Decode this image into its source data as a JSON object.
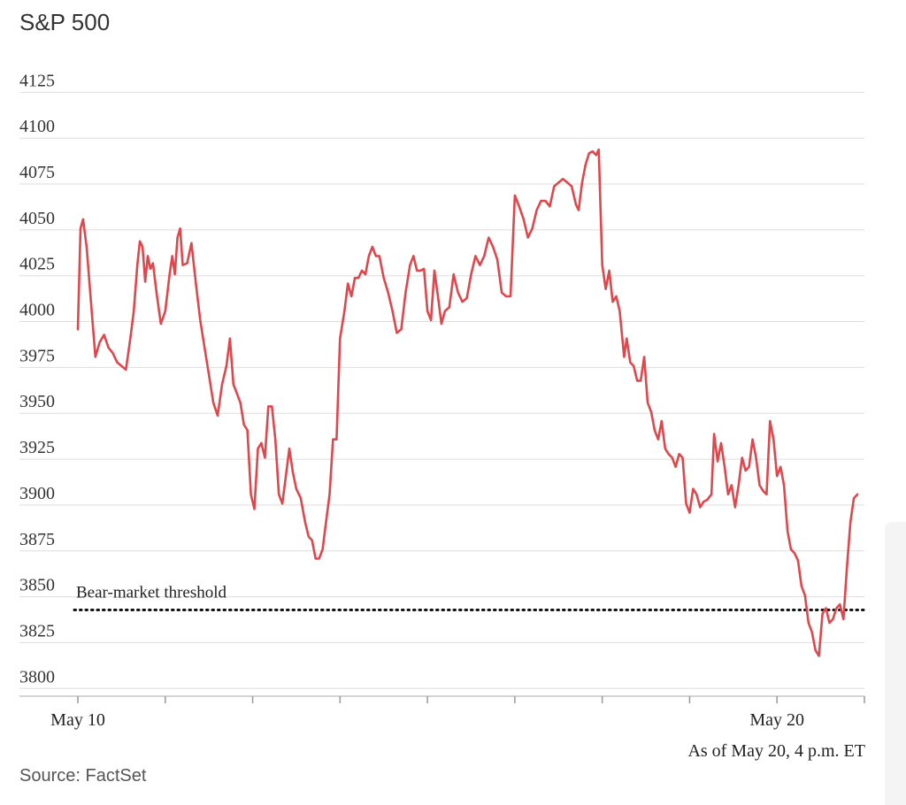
{
  "header": {
    "title": "S&P 500"
  },
  "footer": {
    "source": "Source: FactSet",
    "as_of": "As of May 20, 4 p.m. ET"
  },
  "colors": {
    "line": "#e0474c",
    "grid": "#dddddd",
    "threshold": "#111111"
  },
  "chart_data": {
    "type": "line",
    "title": "S&P 500",
    "xlabel": "",
    "ylabel": "",
    "ylim": [
      3790,
      4130
    ],
    "yticks": [
      4125,
      4100,
      4075,
      4050,
      4025,
      4000,
      3975,
      3950,
      3925,
      3900,
      3875,
      3850,
      3825,
      3800
    ],
    "xlim": [
      0,
      9
    ],
    "x_ticks_positions": [
      0,
      1,
      2,
      3,
      4,
      5,
      6,
      7,
      8,
      9
    ],
    "x_tick_labels": [
      {
        "x": 0,
        "label": "May 10"
      },
      {
        "x": 8,
        "label": "May 20"
      }
    ],
    "grid": true,
    "annotation": {
      "label": "Bear-market threshold",
      "y": 3837,
      "style": "dotted"
    },
    "series": [
      {
        "name": "",
        "points": [
          [
            0.0,
            3990
          ],
          [
            0.03,
            4045
          ],
          [
            0.06,
            4050
          ],
          [
            0.1,
            4035
          ],
          [
            0.15,
            4005
          ],
          [
            0.2,
            3975
          ],
          [
            0.25,
            3983
          ],
          [
            0.3,
            3987
          ],
          [
            0.35,
            3980
          ],
          [
            0.4,
            3977
          ],
          [
            0.45,
            3972
          ],
          [
            0.5,
            3970
          ],
          [
            0.55,
            3968
          ],
          [
            0.6,
            3985
          ],
          [
            0.64,
            4000
          ],
          [
            0.68,
            4025
          ],
          [
            0.71,
            4038
          ],
          [
            0.74,
            4035
          ],
          [
            0.77,
            4016
          ],
          [
            0.8,
            4030
          ],
          [
            0.83,
            4023
          ],
          [
            0.86,
            4026
          ],
          [
            0.9,
            4010
          ],
          [
            0.95,
            3993
          ],
          [
            1.0,
            4000
          ],
          [
            1.05,
            4020
          ],
          [
            1.08,
            4030
          ],
          [
            1.11,
            4020
          ],
          [
            1.14,
            4040
          ],
          [
            1.17,
            4045
          ],
          [
            1.2,
            4025
          ],
          [
            1.25,
            4026
          ],
          [
            1.3,
            4037
          ],
          [
            1.35,
            4015
          ],
          [
            1.4,
            3995
          ],
          [
            1.45,
            3980
          ],
          [
            1.5,
            3965
          ],
          [
            1.55,
            3950
          ],
          [
            1.6,
            3943
          ],
          [
            1.65,
            3960
          ],
          [
            1.7,
            3970
          ],
          [
            1.74,
            3985
          ],
          [
            1.78,
            3960
          ],
          [
            1.82,
            3955
          ],
          [
            1.86,
            3950
          ],
          [
            1.9,
            3938
          ],
          [
            1.94,
            3935
          ],
          [
            1.98,
            3900
          ],
          [
            2.02,
            3892
          ],
          [
            2.06,
            3925
          ],
          [
            2.1,
            3928
          ],
          [
            2.14,
            3920
          ],
          [
            2.18,
            3948
          ],
          [
            2.22,
            3948
          ],
          [
            2.26,
            3930
          ],
          [
            2.3,
            3900
          ],
          [
            2.34,
            3895
          ],
          [
            2.38,
            3910
          ],
          [
            2.42,
            3925
          ],
          [
            2.46,
            3912
          ],
          [
            2.5,
            3903
          ],
          [
            2.55,
            3898
          ],
          [
            2.6,
            3885
          ],
          [
            2.64,
            3877
          ],
          [
            2.68,
            3875
          ],
          [
            2.72,
            3865
          ],
          [
            2.76,
            3865
          ],
          [
            2.8,
            3870
          ],
          [
            2.84,
            3885
          ],
          [
            2.88,
            3900
          ],
          [
            2.92,
            3930
          ],
          [
            2.96,
            3930
          ],
          [
            3.0,
            3985
          ],
          [
            3.05,
            4000
          ],
          [
            3.09,
            4015
          ],
          [
            3.13,
            4008
          ],
          [
            3.17,
            4018
          ],
          [
            3.21,
            4018
          ],
          [
            3.25,
            4022
          ],
          [
            3.29,
            4020
          ],
          [
            3.33,
            4030
          ],
          [
            3.37,
            4035
          ],
          [
            3.41,
            4030
          ],
          [
            3.45,
            4030
          ],
          [
            3.5,
            4018
          ],
          [
            3.55,
            4010
          ],
          [
            3.6,
            4000
          ],
          [
            3.65,
            3988
          ],
          [
            3.7,
            3990
          ],
          [
            3.75,
            4010
          ],
          [
            3.8,
            4025
          ],
          [
            3.84,
            4030
          ],
          [
            3.88,
            4022
          ],
          [
            3.92,
            4022
          ],
          [
            3.96,
            4023
          ],
          [
            4.0,
            4000
          ],
          [
            4.04,
            3995
          ],
          [
            4.08,
            4022
          ],
          [
            4.12,
            4008
          ],
          [
            4.16,
            3993
          ],
          [
            4.2,
            4000
          ],
          [
            4.25,
            4002
          ],
          [
            4.3,
            4020
          ],
          [
            4.35,
            4010
          ],
          [
            4.4,
            4005
          ],
          [
            4.45,
            4007
          ],
          [
            4.5,
            4020
          ],
          [
            4.55,
            4030
          ],
          [
            4.6,
            4025
          ],
          [
            4.65,
            4030
          ],
          [
            4.7,
            4040
          ],
          [
            4.75,
            4035
          ],
          [
            4.8,
            4028
          ],
          [
            4.85,
            4010
          ],
          [
            4.9,
            4008
          ],
          [
            4.95,
            4008
          ],
          [
            5.0,
            4063
          ],
          [
            5.05,
            4057
          ],
          [
            5.1,
            4050
          ],
          [
            5.15,
            4040
          ],
          [
            5.2,
            4045
          ],
          [
            5.25,
            4055
          ],
          [
            5.3,
            4060
          ],
          [
            5.35,
            4060
          ],
          [
            5.4,
            4057
          ],
          [
            5.45,
            4068
          ],
          [
            5.5,
            4070
          ],
          [
            5.55,
            4072
          ],
          [
            5.6,
            4070
          ],
          [
            5.65,
            4068
          ],
          [
            5.7,
            4058
          ],
          [
            5.73,
            4055
          ],
          [
            5.77,
            4070
          ],
          [
            5.81,
            4080
          ],
          [
            5.85,
            4086
          ],
          [
            5.89,
            4087
          ],
          [
            5.93,
            4085
          ],
          [
            5.96,
            4088
          ],
          [
            6.0,
            4025
          ],
          [
            6.04,
            4012
          ],
          [
            6.08,
            4022
          ],
          [
            6.12,
            4005
          ],
          [
            6.16,
            4008
          ],
          [
            6.2,
            4000
          ],
          [
            6.25,
            3975
          ],
          [
            6.28,
            3985
          ],
          [
            6.32,
            3972
          ],
          [
            6.36,
            3970
          ],
          [
            6.4,
            3962
          ],
          [
            6.44,
            3962
          ],
          [
            6.48,
            3975
          ],
          [
            6.52,
            3950
          ],
          [
            6.56,
            3945
          ],
          [
            6.6,
            3935
          ],
          [
            6.64,
            3930
          ],
          [
            6.68,
            3940
          ],
          [
            6.72,
            3925
          ],
          [
            6.76,
            3922
          ],
          [
            6.8,
            3920
          ],
          [
            6.84,
            3915
          ],
          [
            6.88,
            3922
          ],
          [
            6.92,
            3920
          ],
          [
            6.96,
            3895
          ],
          [
            7.0,
            3890
          ],
          [
            7.04,
            3903
          ],
          [
            7.08,
            3900
          ],
          [
            7.12,
            3893
          ],
          [
            7.16,
            3896
          ],
          [
            7.2,
            3897
          ],
          [
            7.25,
            3900
          ],
          [
            7.28,
            3933
          ],
          [
            7.32,
            3918
          ],
          [
            7.36,
            3928
          ],
          [
            7.4,
            3915
          ],
          [
            7.44,
            3900
          ],
          [
            7.48,
            3905
          ],
          [
            7.52,
            3893
          ],
          [
            7.56,
            3905
          ],
          [
            7.6,
            3920
          ],
          [
            7.64,
            3913
          ],
          [
            7.68,
            3915
          ],
          [
            7.72,
            3930
          ],
          [
            7.76,
            3920
          ],
          [
            7.8,
            3905
          ],
          [
            7.84,
            3902
          ],
          [
            7.88,
            3900
          ],
          [
            7.92,
            3940
          ],
          [
            7.96,
            3930
          ],
          [
            8.0,
            3910
          ],
          [
            8.04,
            3915
          ],
          [
            8.08,
            3905
          ],
          [
            8.12,
            3880
          ],
          [
            8.16,
            3870
          ],
          [
            8.2,
            3868
          ],
          [
            8.24,
            3864
          ],
          [
            8.28,
            3850
          ],
          [
            8.32,
            3845
          ],
          [
            8.36,
            3830
          ],
          [
            8.4,
            3825
          ],
          [
            8.44,
            3815
          ],
          [
            8.48,
            3812
          ],
          [
            8.52,
            3835
          ],
          [
            8.56,
            3838
          ],
          [
            8.6,
            3830
          ],
          [
            8.64,
            3832
          ],
          [
            8.68,
            3838
          ],
          [
            8.72,
            3840
          ],
          [
            8.76,
            3832
          ],
          [
            8.8,
            3860
          ],
          [
            8.84,
            3885
          ],
          [
            8.88,
            3898
          ],
          [
            8.92,
            3900
          ]
        ]
      }
    ]
  }
}
